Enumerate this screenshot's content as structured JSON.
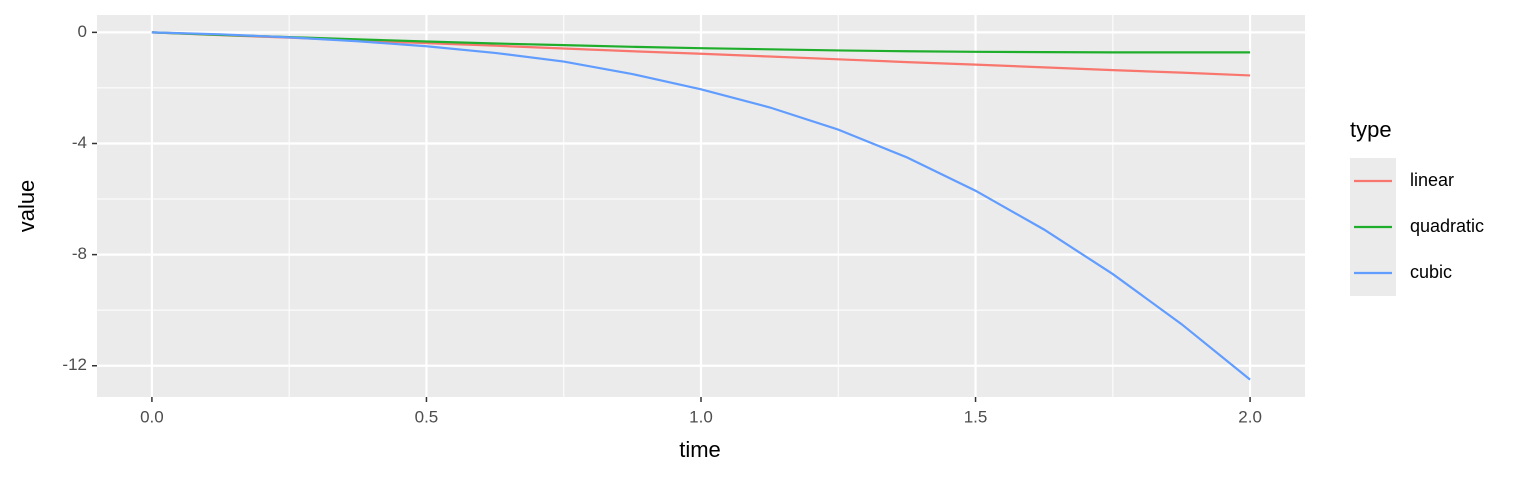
{
  "chart_data": {
    "type": "line",
    "x_label": "time",
    "y_label": "value",
    "legend_title": "type",
    "x": [
      0,
      0.125,
      0.25,
      0.375,
      0.5,
      0.625,
      0.75,
      0.875,
      1,
      1.125,
      1.25,
      1.375,
      1.5,
      1.625,
      1.75,
      1.875,
      2
    ],
    "series": [
      {
        "name": "linear",
        "color": "#f8766d",
        "values": [
          0,
          -0.1,
          -0.19,
          -0.29,
          -0.39,
          -0.48,
          -0.58,
          -0.68,
          -0.77,
          -0.87,
          -0.97,
          -1.07,
          -1.16,
          -1.26,
          -1.36,
          -1.45,
          -1.55
        ]
      },
      {
        "name": "quadratic",
        "color": "#1fae2b",
        "values": [
          0,
          -0.09,
          -0.17,
          -0.25,
          -0.33,
          -0.4,
          -0.46,
          -0.52,
          -0.57,
          -0.61,
          -0.65,
          -0.68,
          -0.7,
          -0.71,
          -0.72,
          -0.72,
          -0.72
        ]
      },
      {
        "name": "cubic",
        "color": "#619cff",
        "values": [
          0,
          -0.07,
          -0.18,
          -0.32,
          -0.5,
          -0.74,
          -1.05,
          -1.5,
          -2.05,
          -2.7,
          -3.5,
          -4.5,
          -5.7,
          -7.1,
          -8.7,
          -10.5,
          -12.5
        ]
      }
    ],
    "xlim": [
      -0.1,
      2.1
    ],
    "ylim": [
      -13.125,
      0.625
    ],
    "xticks": [
      {
        "value": 0,
        "label": "0.0"
      },
      0.5,
      {
        "value": 1,
        "label": "1.0"
      },
      1.5,
      {
        "value": 2,
        "label": "2.0"
      }
    ],
    "yticks": [
      -12,
      -8,
      -4,
      0
    ],
    "x_minor_breaks": [
      0.25,
      0.75,
      1.25,
      1.75
    ],
    "y_minor_breaks": [
      -10,
      -6,
      -2
    ],
    "grid": true,
    "legend_position": "right"
  }
}
